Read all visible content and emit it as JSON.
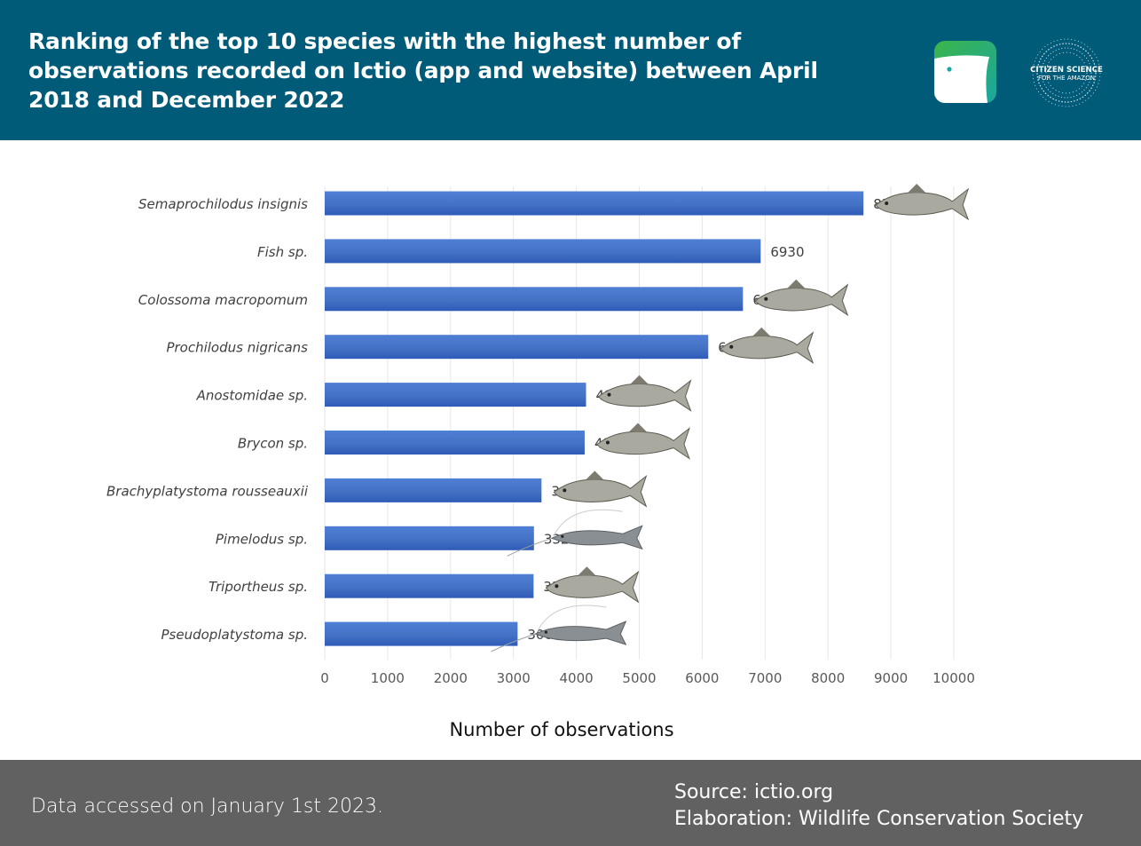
{
  "header": {
    "title": "Ranking of the top 10 species with the highest number of observations recorded on Ictio (app and website) between April 2018 and December 2022",
    "brand_color": "#005b78",
    "app_logo_icon": "ictio-fish-logo-icon",
    "partner_logo_icon": "citizen-science-amazon-logo-icon",
    "partner_logo_text": [
      "CITIZEN SCIENCE",
      "FOR THE AMAZON"
    ]
  },
  "chart_data": {
    "type": "bar",
    "orientation": "horizontal",
    "categories": [
      "Semaprochilodus insignis",
      "Fish sp.",
      "Colossoma macropomum",
      "Prochilodus nigricans",
      "Anostomidae sp.",
      "Brycon sp.",
      "Brachyplatystoma rousseauxii",
      "Pimelodus sp.",
      "Triportheus sp.",
      "Pseudoplatystoma sp."
    ],
    "values": [
      8564,
      6930,
      6648,
      6097,
      4154,
      4132,
      3446,
      3326,
      3320,
      3066
    ],
    "xlabel": "Number of observations",
    "xlim": [
      0,
      10000
    ],
    "xticks": [
      0,
      1000,
      2000,
      3000,
      4000,
      5000,
      6000,
      7000,
      8000,
      9000,
      10000
    ],
    "grid": "vertical",
    "bar_color": "#4472c4",
    "fish_icons": [
      "fish-icon",
      "",
      "fish-icon",
      "fish-icon",
      "fish-icon",
      "fish-icon",
      "fish-icon",
      "catfish-icon",
      "fish-icon",
      "catfish-icon"
    ]
  },
  "footer": {
    "accessed": "Data accessed on January 1st 2023.",
    "source": "Source: ictio.org",
    "elaboration": "Elaboration: Wildlife Conservation Society",
    "background": "#616161"
  }
}
